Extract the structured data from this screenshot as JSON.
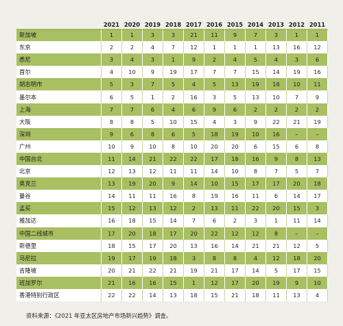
{
  "table": {
    "years": [
      "2021",
      "2020",
      "2019",
      "2018",
      "2017",
      "2016",
      "2015",
      "2014",
      "2013",
      "2012",
      "2011"
    ],
    "rows": [
      {
        "city": "新加坡",
        "values": [
          "1",
          "1",
          "3",
          "3",
          "21",
          "11",
          "9",
          "7",
          "3",
          "1",
          "1"
        ]
      },
      {
        "city": "东京",
        "values": [
          "2",
          "2",
          "4",
          "7",
          "12",
          "1",
          "1",
          "1",
          "13",
          "16",
          "12"
        ]
      },
      {
        "city": "悉尼",
        "values": [
          "3",
          "4",
          "3",
          "1",
          "9",
          "2",
          "4",
          "5",
          "4",
          "3",
          "6"
        ]
      },
      {
        "city": "首尔",
        "values": [
          "4",
          "10",
          "9",
          "19",
          "17",
          "7",
          "7",
          "15",
          "14",
          "19",
          "16"
        ]
      },
      {
        "city": "胡志明市",
        "values": [
          "5",
          "3",
          "7",
          "5",
          "4",
          "5",
          "13",
          "19",
          "18",
          "10",
          "11"
        ]
      },
      {
        "city": "墨尔本",
        "values": [
          "6",
          "5",
          "1",
          "2",
          "16",
          "3",
          "5",
          "13",
          "10",
          "7",
          "9"
        ]
      },
      {
        "city": "上海",
        "values": [
          "7",
          "7",
          "6",
          "4",
          "6",
          "9",
          "6",
          "2",
          "2",
          "2",
          "2"
        ]
      },
      {
        "city": "大阪",
        "values": [
          "8",
          "8",
          "5",
          "10",
          "15",
          "4",
          "3",
          "9",
          "22",
          "21",
          "19"
        ]
      },
      {
        "city": "深圳",
        "values": [
          "9",
          "6",
          "8",
          "6",
          "5",
          "18",
          "19",
          "10",
          "16",
          "–",
          "–"
        ]
      },
      {
        "city": "广州",
        "values": [
          "10",
          "9",
          "10",
          "8",
          "10",
          "20",
          "20",
          "6",
          "15",
          "6",
          "8"
        ]
      },
      {
        "city": "中国台北",
        "values": [
          "11",
          "14",
          "21",
          "22",
          "22",
          "17",
          "18",
          "16",
          "9",
          "8",
          "13"
        ]
      },
      {
        "city": "北京",
        "values": [
          "12",
          "13",
          "12",
          "11",
          "11",
          "14",
          "10",
          "8",
          "7",
          "5",
          "7"
        ]
      },
      {
        "city": "奥克兰",
        "values": [
          "13",
          "19",
          "20",
          "9",
          "14",
          "10",
          "15",
          "17",
          "17",
          "20",
          "18"
        ]
      },
      {
        "city": "曼谷",
        "values": [
          "14",
          "11",
          "11",
          "16",
          "8",
          "19",
          "16",
          "11",
          "6",
          "14",
          "17"
        ]
      },
      {
        "city": "孟买",
        "values": [
          "15",
          "12",
          "13",
          "12",
          "2",
          "13",
          "11",
          "22",
          "20",
          "15",
          "3"
        ]
      },
      {
        "city": "雅加达",
        "values": [
          "16",
          "18",
          "15",
          "14",
          "7",
          "6",
          "2",
          "3",
          "1",
          "11",
          "14"
        ]
      },
      {
        "city": "中国二线城市",
        "values": [
          "17",
          "20",
          "18",
          "17",
          "20",
          "22",
          "12",
          "12",
          "8",
          "–",
          "–"
        ]
      },
      {
        "city": "新德里",
        "values": [
          "18",
          "15",
          "17",
          "20",
          "13",
          "16",
          "14",
          "21",
          "21",
          "12",
          "5"
        ]
      },
      {
        "city": "马尼拉",
        "values": [
          "19",
          "17",
          "19",
          "18",
          "3",
          "8",
          "8",
          "4",
          "12",
          "18",
          "20"
        ]
      },
      {
        "city": "吉隆坡",
        "values": [
          "20",
          "21",
          "22",
          "21",
          "19",
          "21",
          "17",
          "14",
          "5",
          "17",
          "15"
        ]
      },
      {
        "city": "班加罗尔",
        "values": [
          "21",
          "16",
          "16",
          "15",
          "1",
          "12",
          "17",
          "20",
          "19",
          "9",
          "10"
        ]
      },
      {
        "city": "香港特别行政区",
        "values": [
          "22",
          "22",
          "14",
          "13",
          "18",
          "15",
          "21",
          "18",
          "11",
          "13",
          "4"
        ]
      }
    ]
  },
  "source_note": "资料来源：《2021 年亚太区房地产市场新兴趋势》调查。"
}
